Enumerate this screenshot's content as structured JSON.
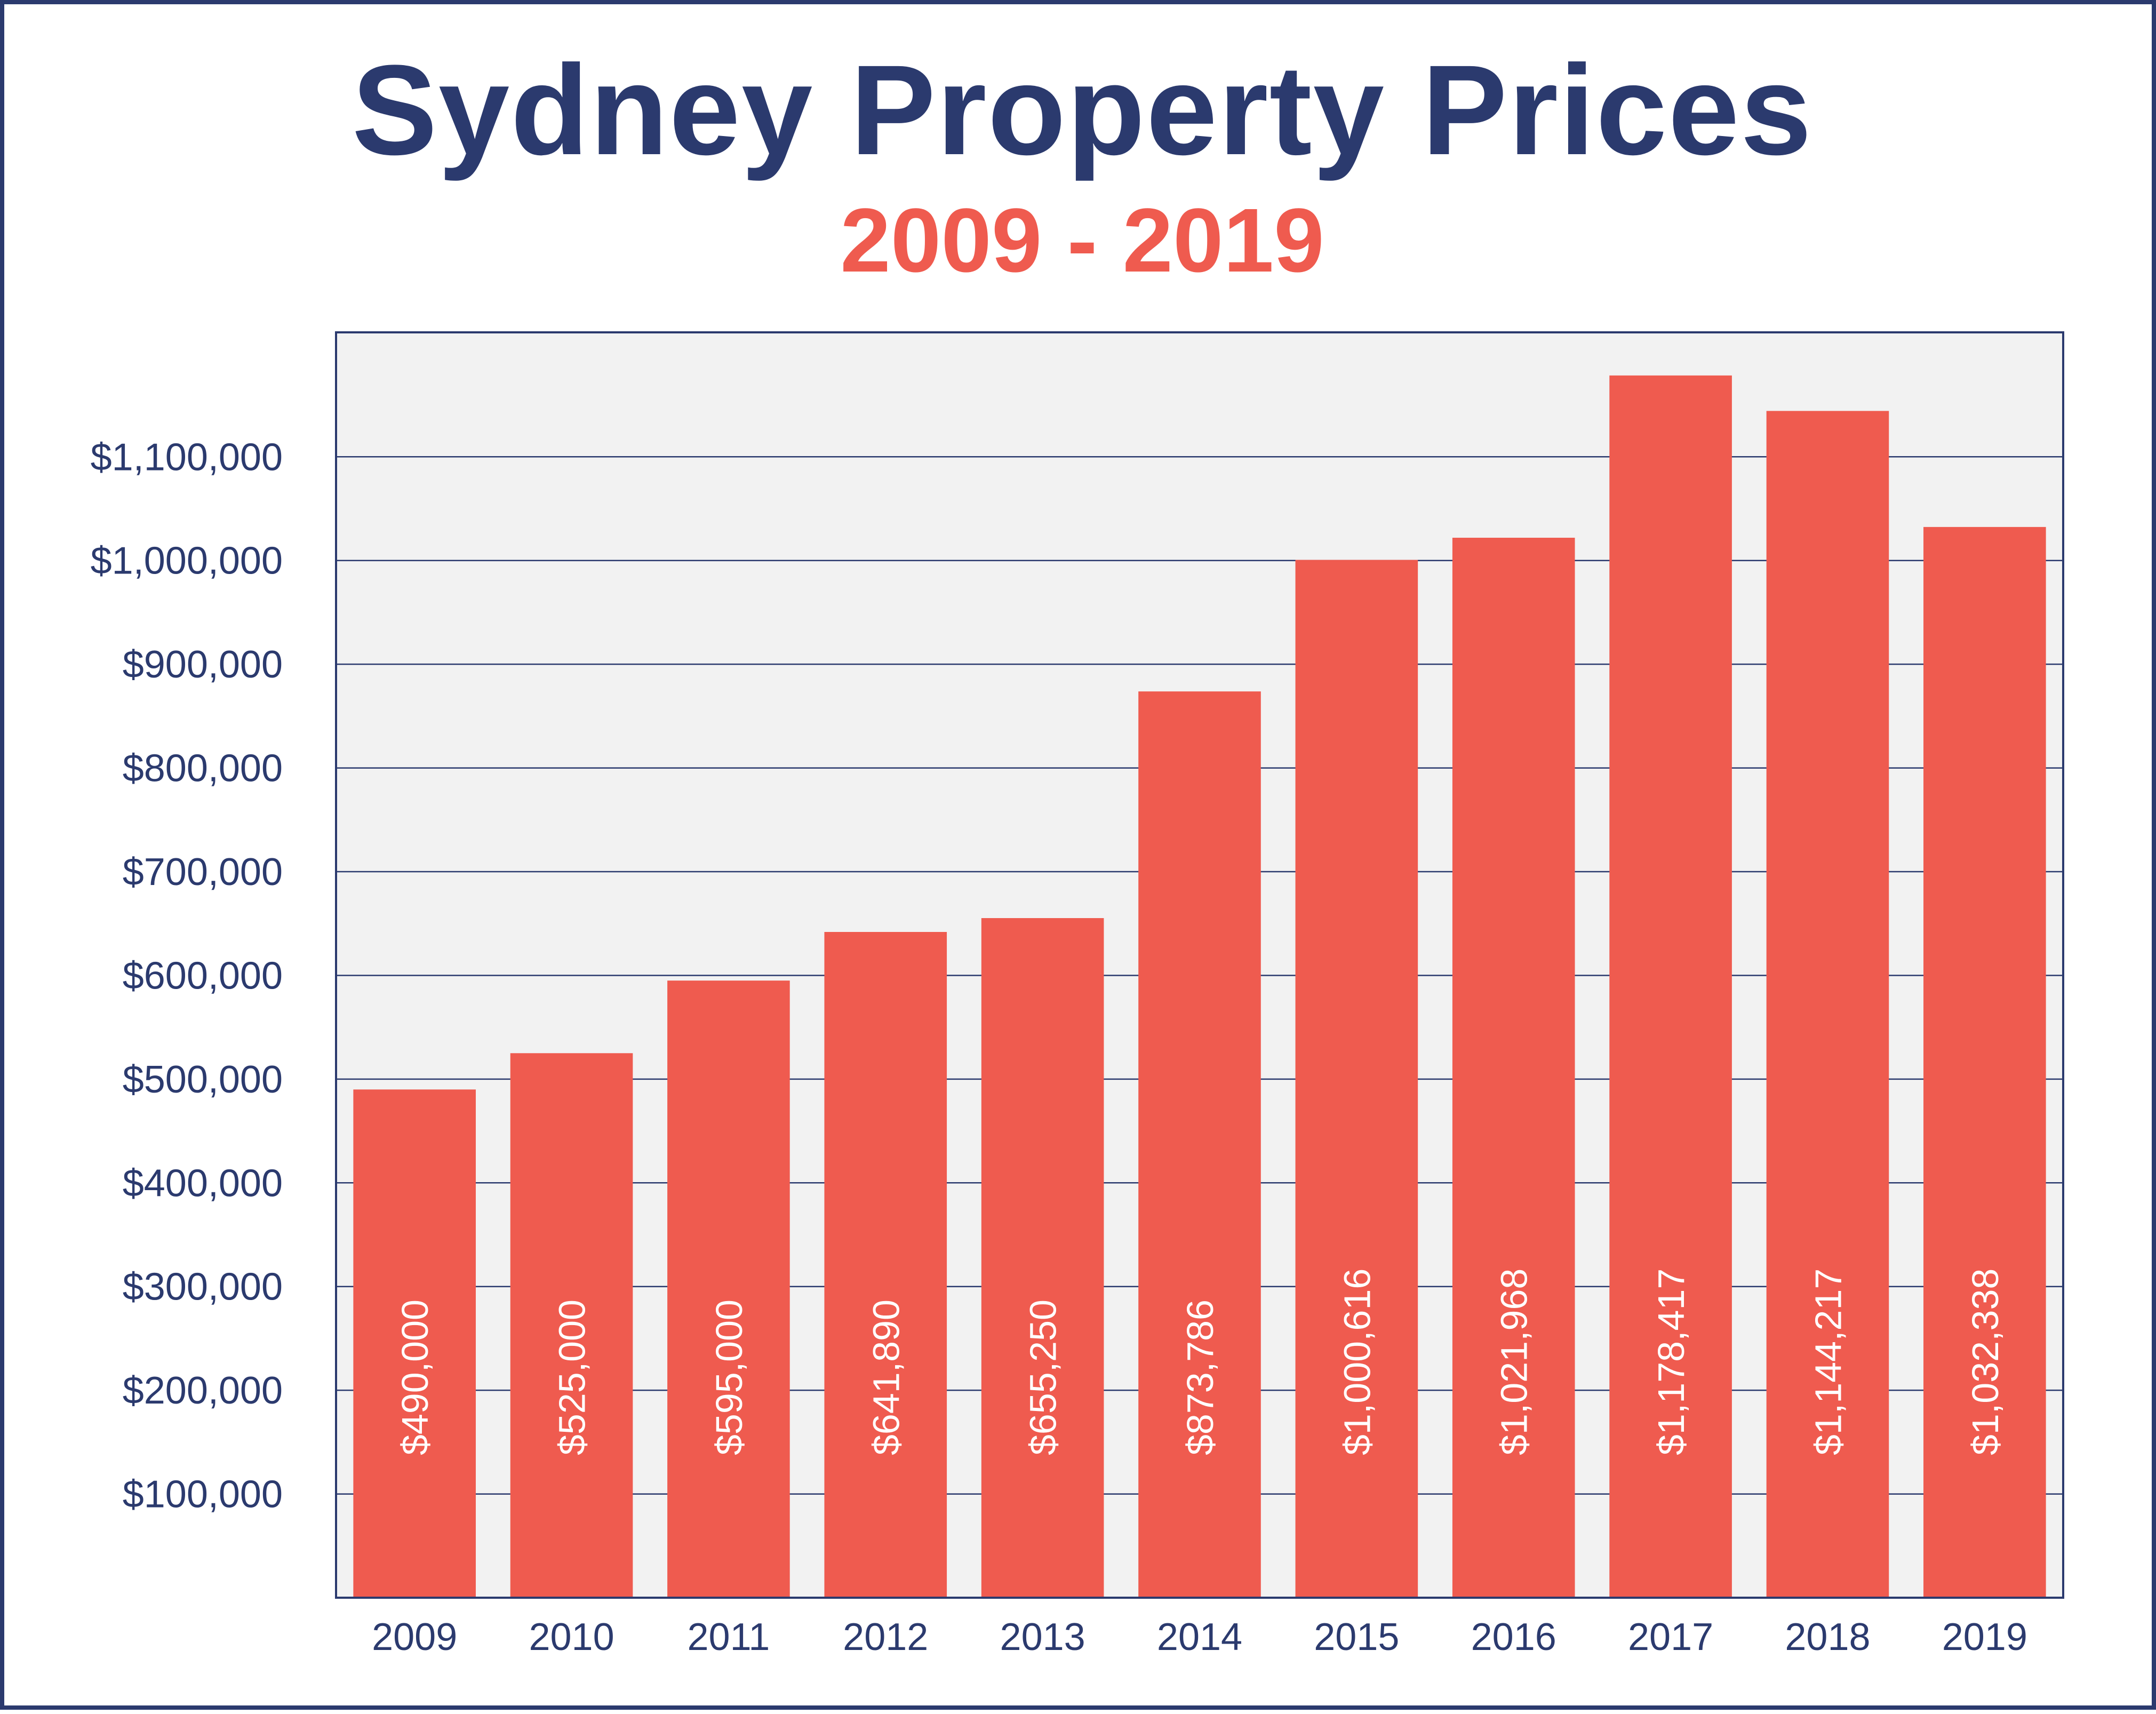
{
  "chart_data": {
    "type": "bar",
    "title": "Sydney Property Prices",
    "subtitle": "2009 - 2019",
    "categories": [
      "2009",
      "2010",
      "2011",
      "2012",
      "2013",
      "2014",
      "2015",
      "2016",
      "2017",
      "2018",
      "2019"
    ],
    "values": [
      490000,
      525000,
      595000,
      641890,
      655250,
      873786,
      1000616,
      1021968,
      1178417,
      1144217,
      1032338
    ],
    "value_labels": [
      "$490,000",
      "$525,000",
      "$595,000",
      "$641,890",
      "$655,250",
      "$873,786",
      "$1,000,616",
      "$1,021,968",
      "$1,178,417",
      "$1,144,217",
      "$1,032,338"
    ],
    "y_ticks": [
      100000,
      200000,
      300000,
      400000,
      500000,
      600000,
      700000,
      800000,
      900000,
      1000000,
      1100000
    ],
    "y_tick_labels": [
      "$100,000",
      "$200,000",
      "$300,000",
      "$400,000",
      "$500,000",
      "$600,000",
      "$700,000",
      "$800,000",
      "$900,000",
      "$1,000,000",
      "$1,100,000"
    ],
    "ylim": [
      0,
      1220000
    ],
    "xlabel": "",
    "ylabel": "",
    "grid": true,
    "legend": "none",
    "colors": {
      "bar": "#ef5b4f",
      "plot_background": "#f2f2f2",
      "grid": "#2b3a6e",
      "text": "#2b3a6e",
      "subtitle": "#ef5b4f",
      "bar_label": "#ffffff"
    }
  }
}
